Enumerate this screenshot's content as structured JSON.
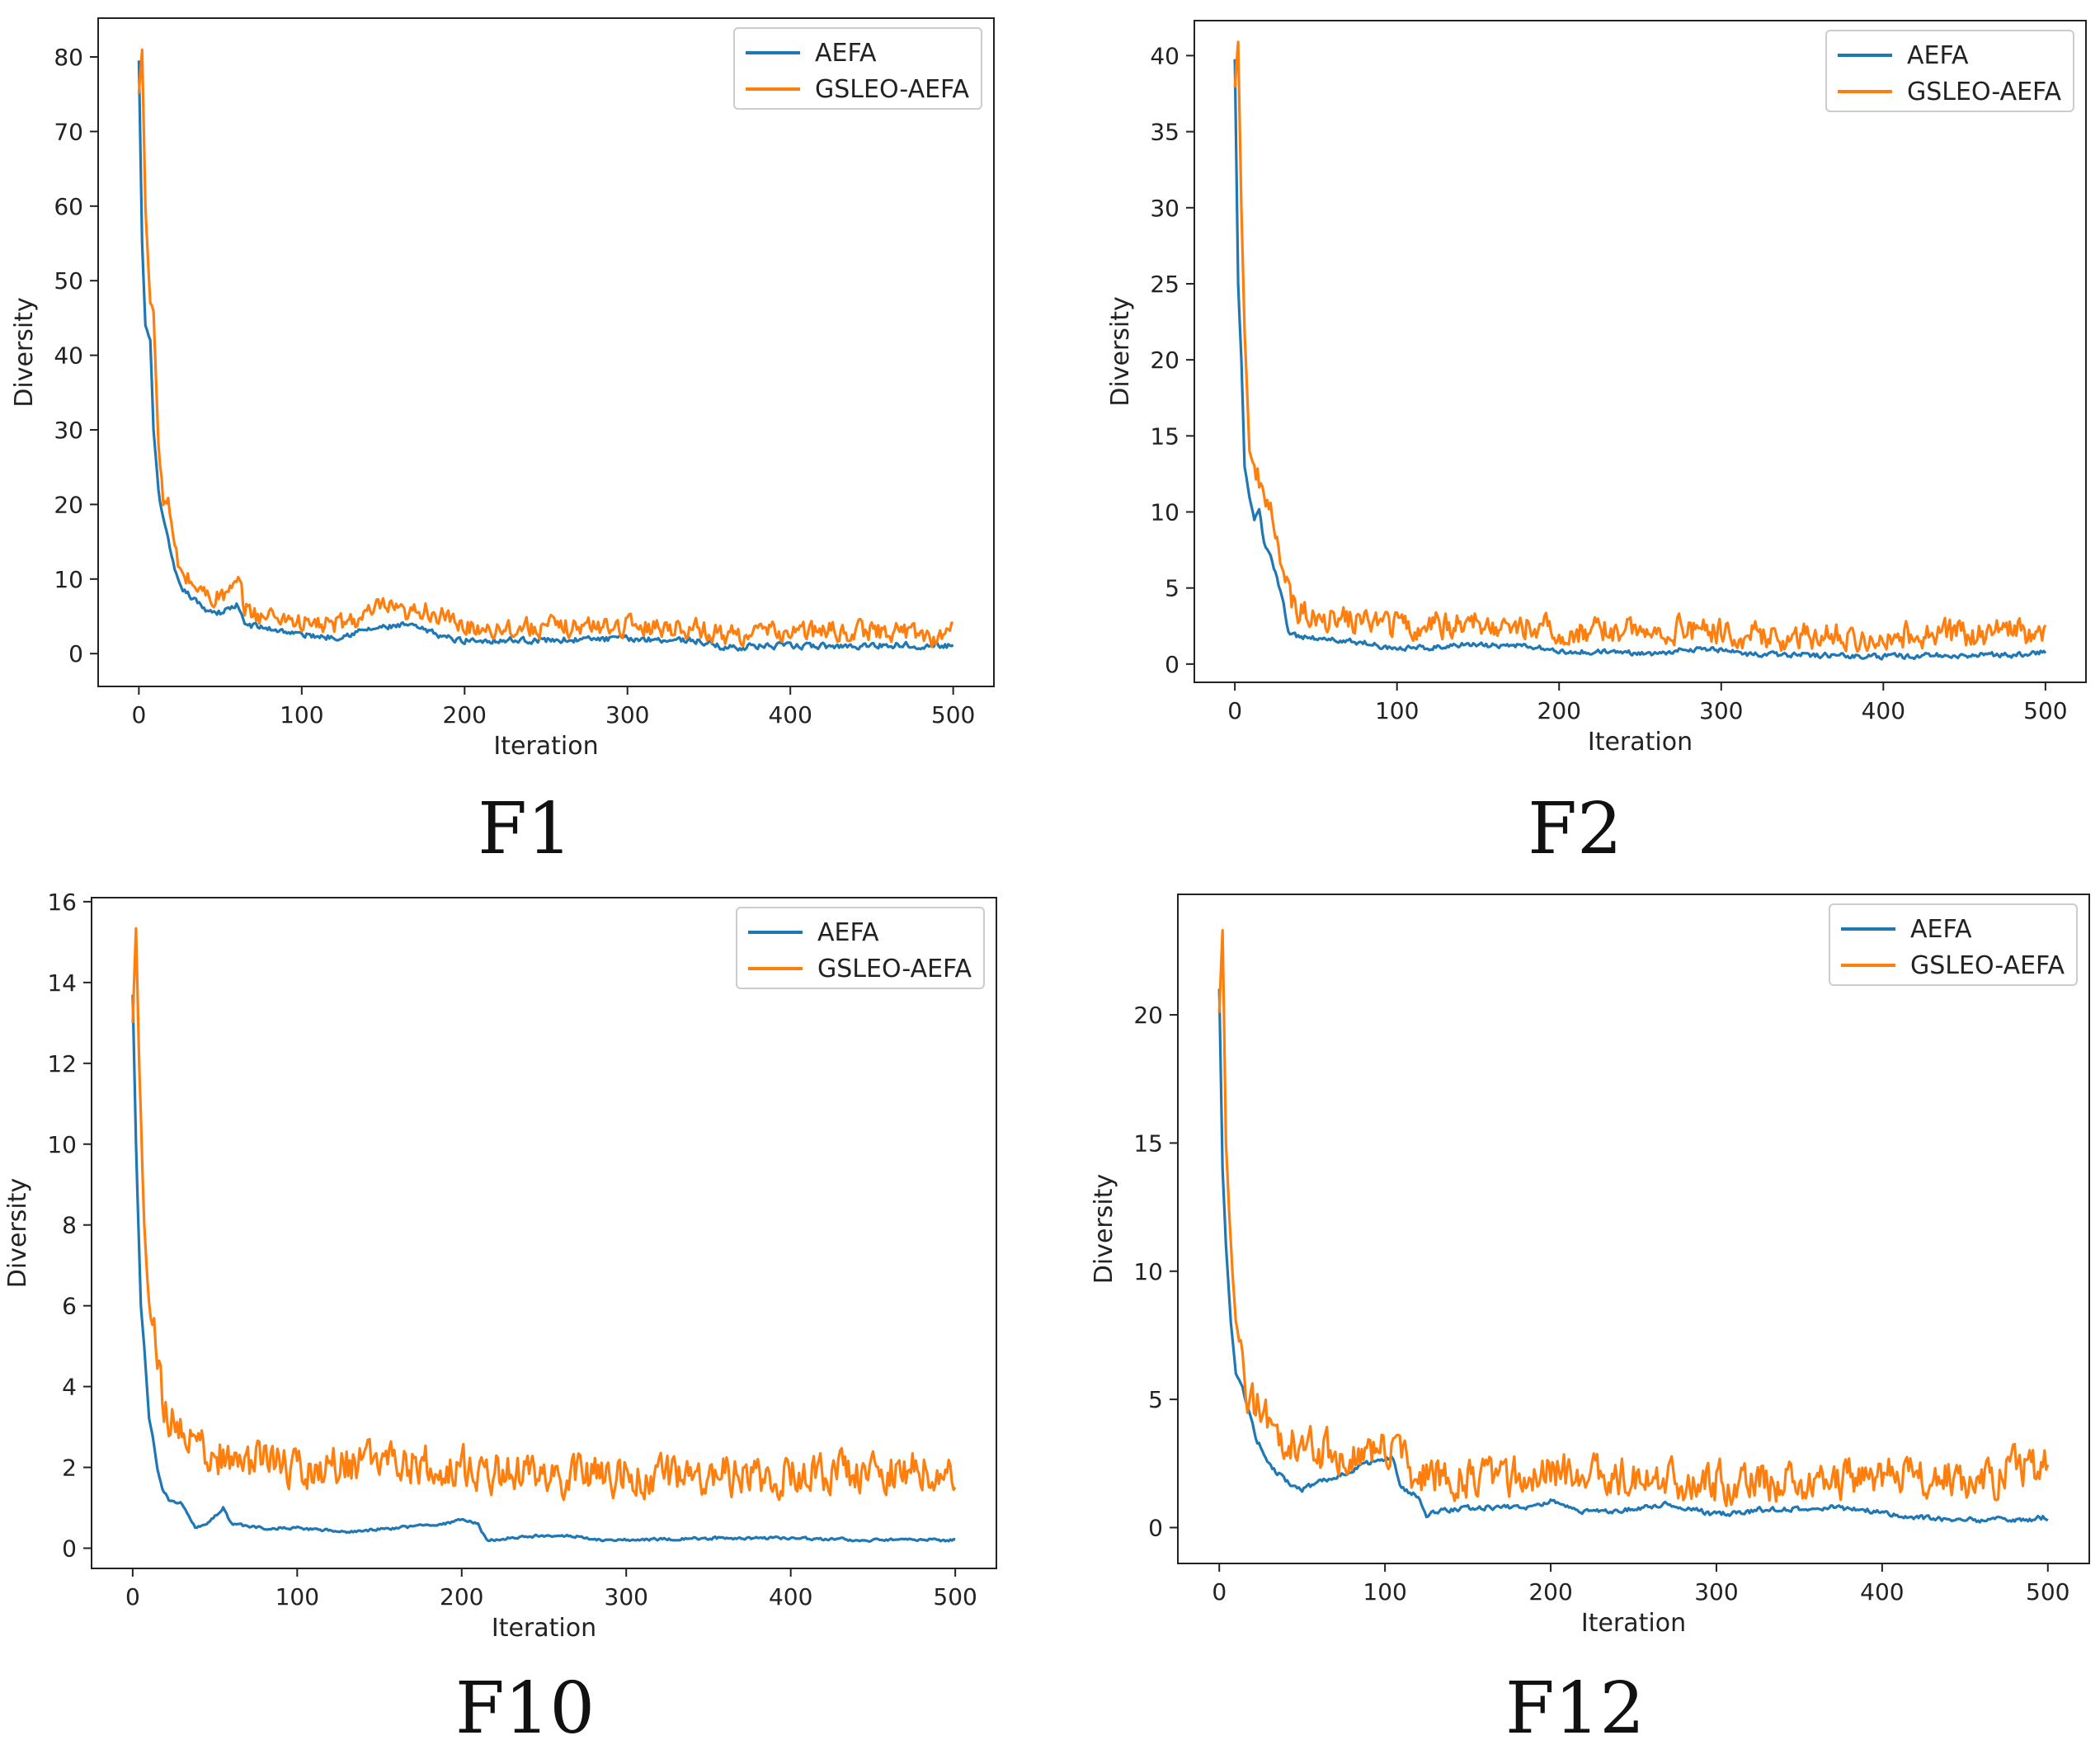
{
  "figure": {
    "panels": [
      {
        "caption": "F1"
      },
      {
        "caption": "F2"
      },
      {
        "caption": "F10"
      },
      {
        "caption": "F12"
      }
    ]
  },
  "chart_data": [
    {
      "type": "line",
      "title": "F1",
      "xlabel": "Iteration",
      "ylabel": "Diversity",
      "xlim": [
        -25,
        525
      ],
      "ylim": [
        -4.4,
        85.2
      ],
      "xticks": [
        0,
        100,
        200,
        300,
        400,
        500
      ],
      "yticks": [
        0,
        10,
        20,
        30,
        40,
        50,
        60,
        70,
        80
      ],
      "legend": {
        "position": "top-right",
        "entries": [
          "AEFA",
          "GSLEO-AEFA"
        ]
      },
      "noise": [
        0.6,
        1.2
      ],
      "series": [
        {
          "name": "AEFA",
          "color": "#1f77b4",
          "points": [
            [
              0,
              79.5
            ],
            [
              2,
              55
            ],
            [
              4,
              44
            ],
            [
              7,
              42
            ],
            [
              9,
              30
            ],
            [
              12,
              22
            ],
            [
              15,
              18
            ],
            [
              18,
              15
            ],
            [
              22,
              11
            ],
            [
              25,
              9
            ],
            [
              30,
              8
            ],
            [
              40,
              6
            ],
            [
              50,
              5.5
            ],
            [
              60,
              6.5
            ],
            [
              65,
              4
            ],
            [
              75,
              3.5
            ],
            [
              90,
              3
            ],
            [
              100,
              2.5
            ],
            [
              120,
              2.2
            ],
            [
              140,
              3.2
            ],
            [
              150,
              3.5
            ],
            [
              165,
              3.8
            ],
            [
              180,
              2.8
            ],
            [
              195,
              1.8
            ],
            [
              210,
              1.8
            ],
            [
              250,
              1.8
            ],
            [
              300,
              2
            ],
            [
              340,
              1.8
            ],
            [
              360,
              0.8
            ],
            [
              380,
              1
            ],
            [
              430,
              1
            ],
            [
              470,
              1.2
            ],
            [
              500,
              1
            ]
          ]
        },
        {
          "name": "GSLEO-AEFA",
          "color": "#ff7f0e",
          "points": [
            [
              0,
              75
            ],
            [
              2,
              81
            ],
            [
              4,
              60
            ],
            [
              7,
              47
            ],
            [
              9,
              46
            ],
            [
              12,
              28
            ],
            [
              15,
              21
            ],
            [
              18,
              20
            ],
            [
              22,
              14
            ],
            [
              25,
              11
            ],
            [
              30,
              10
            ],
            [
              40,
              8
            ],
            [
              50,
              7.5
            ],
            [
              62,
              9
            ],
            [
              65,
              6
            ],
            [
              75,
              5
            ],
            [
              90,
              5
            ],
            [
              100,
              4
            ],
            [
              120,
              3.8
            ],
            [
              140,
              5
            ],
            [
              150,
              6.3
            ],
            [
              165,
              4.8
            ],
            [
              175,
              6.2
            ],
            [
              195,
              3.8
            ],
            [
              210,
              3.5
            ],
            [
              250,
              3.5
            ],
            [
              300,
              3.8
            ],
            [
              340,
              3.5
            ],
            [
              360,
              2.5
            ],
            [
              380,
              2.8
            ],
            [
              430,
              3
            ],
            [
              470,
              3
            ],
            [
              495,
              2
            ],
            [
              500,
              4.5
            ]
          ]
        }
      ]
    },
    {
      "type": "line",
      "title": "F2",
      "xlabel": "Iteration",
      "ylabel": "Diversity",
      "xlim": [
        -25,
        525
      ],
      "ylim": [
        -1.2,
        42.3
      ],
      "xticks": [
        0,
        100,
        200,
        300,
        400,
        500
      ],
      "yticks": [
        0,
        5,
        10,
        15,
        20,
        25,
        30,
        35,
        40
      ],
      "legend": {
        "position": "top-right",
        "entries": [
          "AEFA",
          "GSLEO-AEFA"
        ]
      },
      "noise": [
        0.25,
        0.8
      ],
      "series": [
        {
          "name": "AEFA",
          "color": "#1f77b4",
          "points": [
            [
              0,
              39.8
            ],
            [
              2,
              25
            ],
            [
              4,
              20
            ],
            [
              6,
              13
            ],
            [
              9,
              11
            ],
            [
              12,
              9.5
            ],
            [
              15,
              10
            ],
            [
              18,
              8
            ],
            [
              22,
              7
            ],
            [
              25,
              6
            ],
            [
              30,
              4
            ],
            [
              33,
              2
            ],
            [
              40,
              1.8
            ],
            [
              60,
              1.6
            ],
            [
              80,
              1.4
            ],
            [
              100,
              1
            ],
            [
              120,
              1.1
            ],
            [
              140,
              1.3
            ],
            [
              160,
              1.2
            ],
            [
              180,
              1.2
            ],
            [
              200,
              0.8
            ],
            [
              220,
              0.8
            ],
            [
              260,
              0.7
            ],
            [
              280,
              1
            ],
            [
              300,
              0.9
            ],
            [
              320,
              0.6
            ],
            [
              360,
              0.6
            ],
            [
              400,
              0.5
            ],
            [
              450,
              0.6
            ],
            [
              480,
              0.6
            ],
            [
              500,
              0.8
            ]
          ]
        },
        {
          "name": "GSLEO-AEFA",
          "color": "#ff7f0e",
          "points": [
            [
              0,
              38
            ],
            [
              2,
              41
            ],
            [
              4,
              30
            ],
            [
              6,
              22
            ],
            [
              9,
              14
            ],
            [
              12,
              13
            ],
            [
              15,
              12
            ],
            [
              18,
              11
            ],
            [
              22,
              10
            ],
            [
              25,
              8
            ],
            [
              30,
              6
            ],
            [
              35,
              4
            ],
            [
              40,
              3.5
            ],
            [
              60,
              3
            ],
            [
              80,
              2.8
            ],
            [
              100,
              2.5
            ],
            [
              140,
              2.6
            ],
            [
              180,
              2.6
            ],
            [
              200,
              2.1
            ],
            [
              240,
              2.2
            ],
            [
              280,
              2.3
            ],
            [
              300,
              2
            ],
            [
              340,
              1.8
            ],
            [
              400,
              1.9
            ],
            [
              450,
              2
            ],
            [
              480,
              2.1
            ],
            [
              500,
              2
            ]
          ]
        }
      ]
    },
    {
      "type": "line",
      "title": "F10",
      "xlabel": "Iteration",
      "ylabel": "Diversity",
      "xlim": [
        -25,
        525
      ],
      "ylim": [
        -0.5,
        16.1
      ],
      "xticks": [
        0,
        100,
        200,
        300,
        400,
        500
      ],
      "yticks": [
        0,
        2,
        4,
        6,
        8,
        10,
        12,
        14,
        16
      ],
      "legend": {
        "position": "top-right",
        "entries": [
          "AEFA",
          "GSLEO-AEFA"
        ]
      },
      "noise": [
        0.05,
        0.45
      ],
      "series": [
        {
          "name": "AEFA",
          "color": "#1f77b4",
          "points": [
            [
              0,
              13.7
            ],
            [
              2,
              10
            ],
            [
              5,
              6
            ],
            [
              7,
              5
            ],
            [
              10,
              3.2
            ],
            [
              12,
              2.8
            ],
            [
              15,
              2
            ],
            [
              18,
              1.5
            ],
            [
              22,
              1.2
            ],
            [
              30,
              1.1
            ],
            [
              38,
              0.5
            ],
            [
              45,
              0.6
            ],
            [
              50,
              0.8
            ],
            [
              55,
              1
            ],
            [
              60,
              0.6
            ],
            [
              80,
              0.5
            ],
            [
              100,
              0.5
            ],
            [
              130,
              0.4
            ],
            [
              160,
              0.5
            ],
            [
              190,
              0.6
            ],
            [
              200,
              0.7
            ],
            [
              210,
              0.6
            ],
            [
              215,
              0.2
            ],
            [
              240,
              0.3
            ],
            [
              270,
              0.3
            ],
            [
              280,
              0.2
            ],
            [
              300,
              0.2
            ],
            [
              350,
              0.25
            ],
            [
              400,
              0.25
            ],
            [
              450,
              0.2
            ],
            [
              500,
              0.2
            ]
          ]
        },
        {
          "name": "GSLEO-AEFA",
          "color": "#ff7f0e",
          "points": [
            [
              0,
              13
            ],
            [
              2,
              15.3
            ],
            [
              4,
              12
            ],
            [
              7,
              8
            ],
            [
              10,
              6
            ],
            [
              14,
              5
            ],
            [
              18,
              3.8
            ],
            [
              22,
              3.2
            ],
            [
              30,
              3
            ],
            [
              40,
              2.5
            ],
            [
              60,
              2.2
            ],
            [
              100,
              2
            ],
            [
              150,
              2.1
            ],
            [
              200,
              2
            ],
            [
              250,
              1.8
            ],
            [
              300,
              1.8
            ],
            [
              350,
              1.8
            ],
            [
              400,
              1.8
            ],
            [
              450,
              1.9
            ],
            [
              500,
              2
            ]
          ]
        }
      ]
    },
    {
      "type": "line",
      "title": "F12",
      "xlabel": "Iteration",
      "ylabel": "Diversity",
      "xlim": [
        -25,
        525
      ],
      "ylim": [
        -1.4,
        24.7
      ],
      "xticks": [
        0,
        100,
        200,
        300,
        400,
        500
      ],
      "yticks": [
        0,
        5,
        10,
        15,
        20
      ],
      "legend": {
        "position": "top-right",
        "entries": [
          "AEFA",
          "GSLEO-AEFA"
        ]
      },
      "noise": [
        0.15,
        0.7
      ],
      "series": [
        {
          "name": "AEFA",
          "color": "#1f77b4",
          "points": [
            [
              0,
              21
            ],
            [
              2,
              14
            ],
            [
              4,
              11
            ],
            [
              7,
              8
            ],
            [
              10,
              6
            ],
            [
              14,
              5.5
            ],
            [
              18,
              4.5
            ],
            [
              22,
              3.5
            ],
            [
              30,
              2.5
            ],
            [
              40,
              1.8
            ],
            [
              50,
              1.5
            ],
            [
              70,
              2
            ],
            [
              90,
              2.5
            ],
            [
              105,
              2.7
            ],
            [
              110,
              1.5
            ],
            [
              120,
              1.2
            ],
            [
              125,
              0.5
            ],
            [
              140,
              0.7
            ],
            [
              160,
              0.8
            ],
            [
              190,
              0.8
            ],
            [
              200,
              1
            ],
            [
              220,
              0.6
            ],
            [
              250,
              0.7
            ],
            [
              270,
              0.9
            ],
            [
              300,
              0.5
            ],
            [
              330,
              0.7
            ],
            [
              370,
              0.8
            ],
            [
              400,
              0.6
            ],
            [
              420,
              0.4
            ],
            [
              450,
              0.3
            ],
            [
              480,
              0.3
            ],
            [
              500,
              0.4
            ]
          ]
        },
        {
          "name": "GSLEO-AEFA",
          "color": "#ff7f0e",
          "points": [
            [
              0,
              20
            ],
            [
              2,
              23.3
            ],
            [
              4,
              15
            ],
            [
              7,
              11
            ],
            [
              10,
              8
            ],
            [
              14,
              6.5
            ],
            [
              18,
              5
            ],
            [
              25,
              4.5
            ],
            [
              30,
              4
            ],
            [
              40,
              3.5
            ],
            [
              60,
              3
            ],
            [
              80,
              3
            ],
            [
              100,
              3.2
            ],
            [
              110,
              2.5
            ],
            [
              120,
              2
            ],
            [
              150,
              2
            ],
            [
              200,
              2.1
            ],
            [
              250,
              2
            ],
            [
              300,
              1.8
            ],
            [
              350,
              1.8
            ],
            [
              400,
              2
            ],
            [
              440,
              2
            ],
            [
              460,
              1.5
            ],
            [
              480,
              2.5
            ],
            [
              500,
              2.3
            ]
          ]
        }
      ]
    }
  ]
}
